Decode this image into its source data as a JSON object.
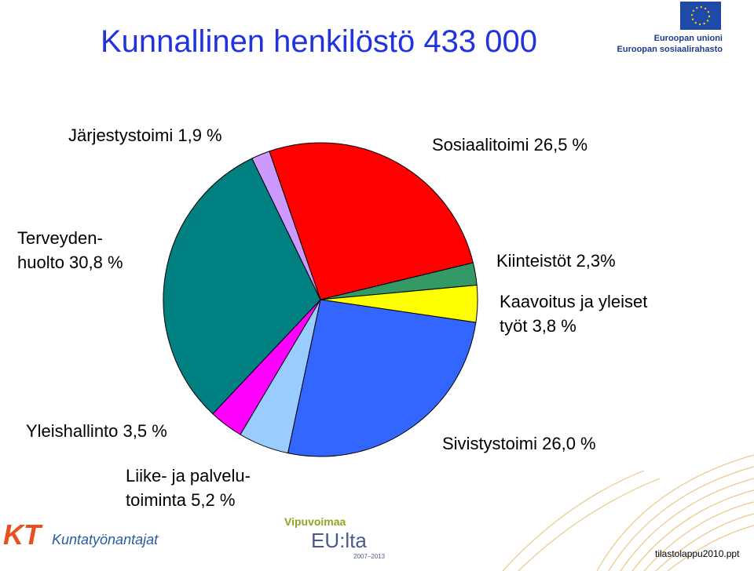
{
  "chart_data": {
    "type": "pie",
    "title": "Kunnallinen henkilöstö 433 000",
    "values": [
      26.5,
      2.3,
      3.8,
      26.0,
      5.2,
      3.5,
      30.8,
      1.9
    ],
    "value_labels": [
      [
        "Sosiaalitoimi 26,5 %"
      ],
      [
        "Kiinteistöt 2,3%"
      ],
      [
        "Kaavoitus ja yleiset",
        "työt 3,8 %"
      ],
      [
        "Sivistystoimi 26,0 %"
      ],
      [
        "Liike- ja palvelu-",
        "toiminta 5,2 %"
      ],
      [
        "Yleishallinto 3,5 %"
      ],
      [
        "Terveyden-",
        "huolto 30,8 %"
      ],
      [
        "Järjestystoimi 1,9 %"
      ]
    ],
    "colors": [
      "#ff0000",
      "#339966",
      "#ffff00",
      "#3366ff",
      "#99ccff",
      "#ff00ff",
      "#008080",
      "#cc99ff"
    ]
  },
  "logos": {
    "eu_line1": "Euroopan unioni",
    "eu_line2": "Euroopan sosiaalirahasto",
    "kt_mark": "KT",
    "kt_name": "Kuntatyönantajat",
    "vipu_line1": "Vipuvoimaa",
    "vipu_line2": "EU:lta",
    "vipu_years": "2007–2013"
  },
  "footer": "tilastolappu2010.ppt"
}
